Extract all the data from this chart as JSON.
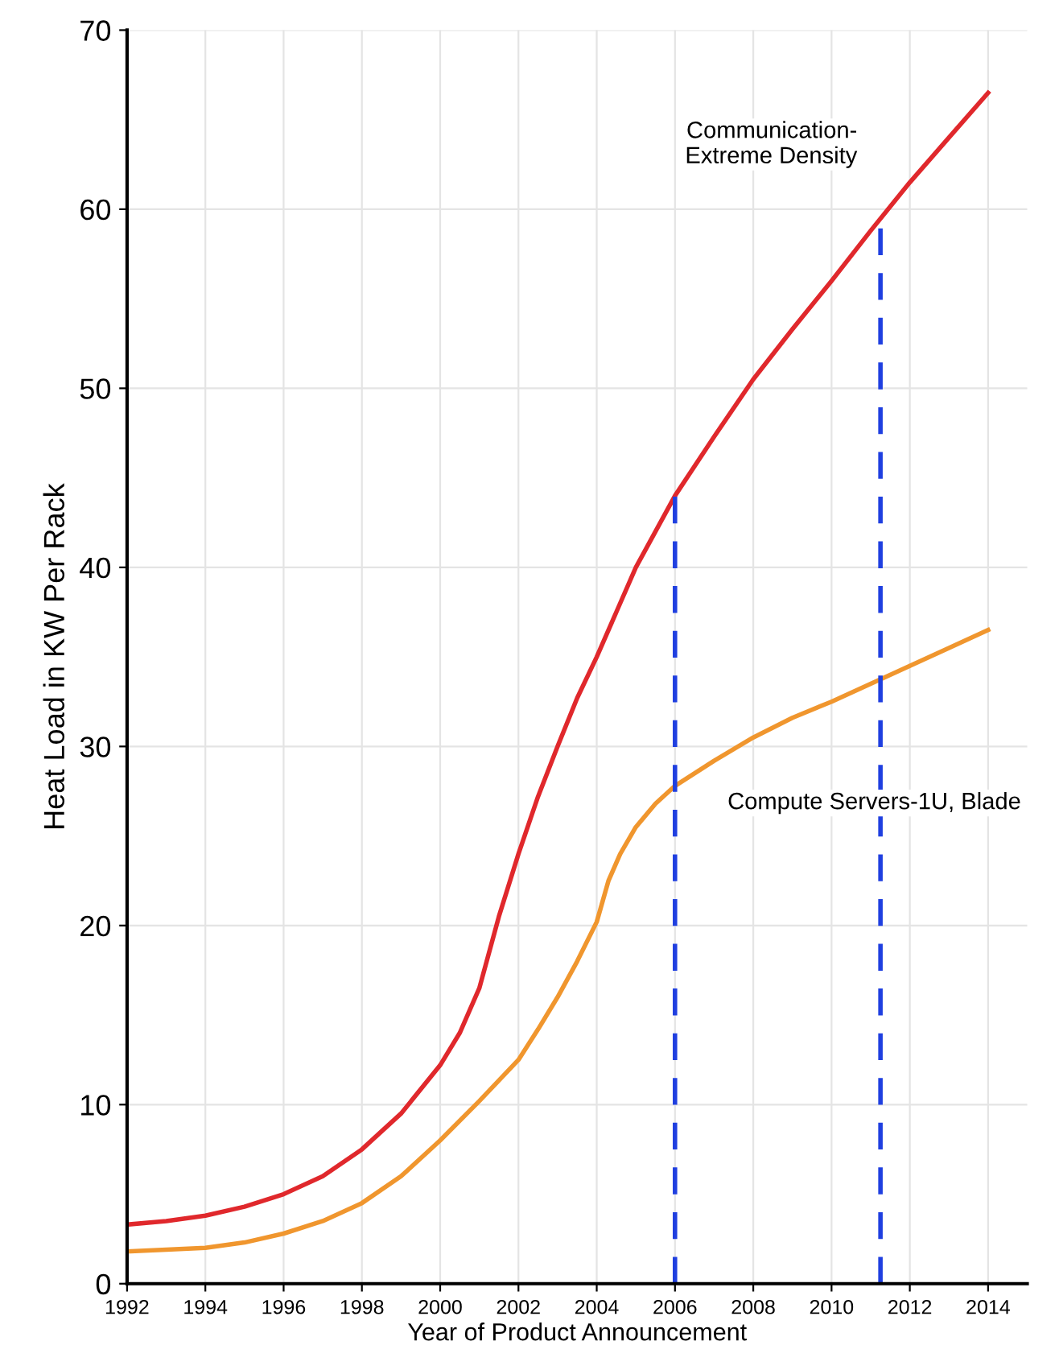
{
  "chart_data": {
    "type": "line",
    "xlabel": "Year of Product Announcement",
    "ylabel": "Heat Load in KW Per Rack",
    "series": [
      {
        "name": "Communication-\nExtreme Density",
        "color": "#e0282c",
        "x": [
          1992,
          1993,
          1994,
          1995,
          1996,
          1997,
          1998,
          1999,
          2000,
          2000.5,
          2001,
          2001.5,
          2002,
          2002.5,
          2003,
          2003.5,
          2004,
          2004.5,
          2005,
          2005.5,
          2006,
          2007,
          2008,
          2009,
          2010,
          2011,
          2012,
          2013,
          2014
        ],
        "values": [
          3.3,
          3.5,
          3.8,
          4.3,
          5.0,
          6.0,
          7.5,
          9.5,
          12.2,
          14.0,
          16.5,
          20.5,
          24.0,
          27.2,
          30.0,
          32.7,
          35.0,
          37.5,
          40.0,
          42.0,
          44.0,
          47.3,
          50.5,
          53.3,
          56.0,
          58.8,
          61.5,
          64.0,
          66.5
        ]
      },
      {
        "name": "Compute Servers-1U, Blade",
        "color": "#f0962e",
        "x": [
          1992,
          1993,
          1994,
          1995,
          1996,
          1997,
          1998,
          1999,
          2000,
          2001,
          2002,
          2002.5,
          2003,
          2003.5,
          2004,
          2004.3,
          2004.6,
          2005,
          2005.5,
          2006,
          2007,
          2008,
          2009,
          2010,
          2011,
          2012,
          2013,
          2014
        ],
        "values": [
          1.8,
          1.9,
          2.0,
          2.3,
          2.8,
          3.5,
          4.5,
          6.0,
          8.0,
          10.2,
          12.5,
          14.2,
          16.0,
          18.0,
          20.2,
          22.5,
          24.0,
          25.5,
          26.8,
          27.8,
          29.2,
          30.5,
          31.6,
          32.5,
          33.5,
          34.5,
          35.5,
          36.5
        ]
      }
    ],
    "xlim": [
      1992,
      2015
    ],
    "xticks": [
      1992,
      1994,
      1996,
      1998,
      2000,
      2002,
      2004,
      2006,
      2008,
      2010,
      2012,
      2014
    ],
    "ylim": [
      0,
      70
    ],
    "yticks": [
      0,
      10,
      20,
      30,
      40,
      50,
      60,
      70
    ],
    "grid": true,
    "line_style": "solid",
    "marker": "none",
    "ref_lines": [
      {
        "axis": "x",
        "value": 2006,
        "color": "#1f3fe0",
        "line_style": "dashed"
      },
      {
        "axis": "x",
        "value": 2011.25,
        "color": "#1f3fe0",
        "line_style": "dashed"
      }
    ]
  }
}
